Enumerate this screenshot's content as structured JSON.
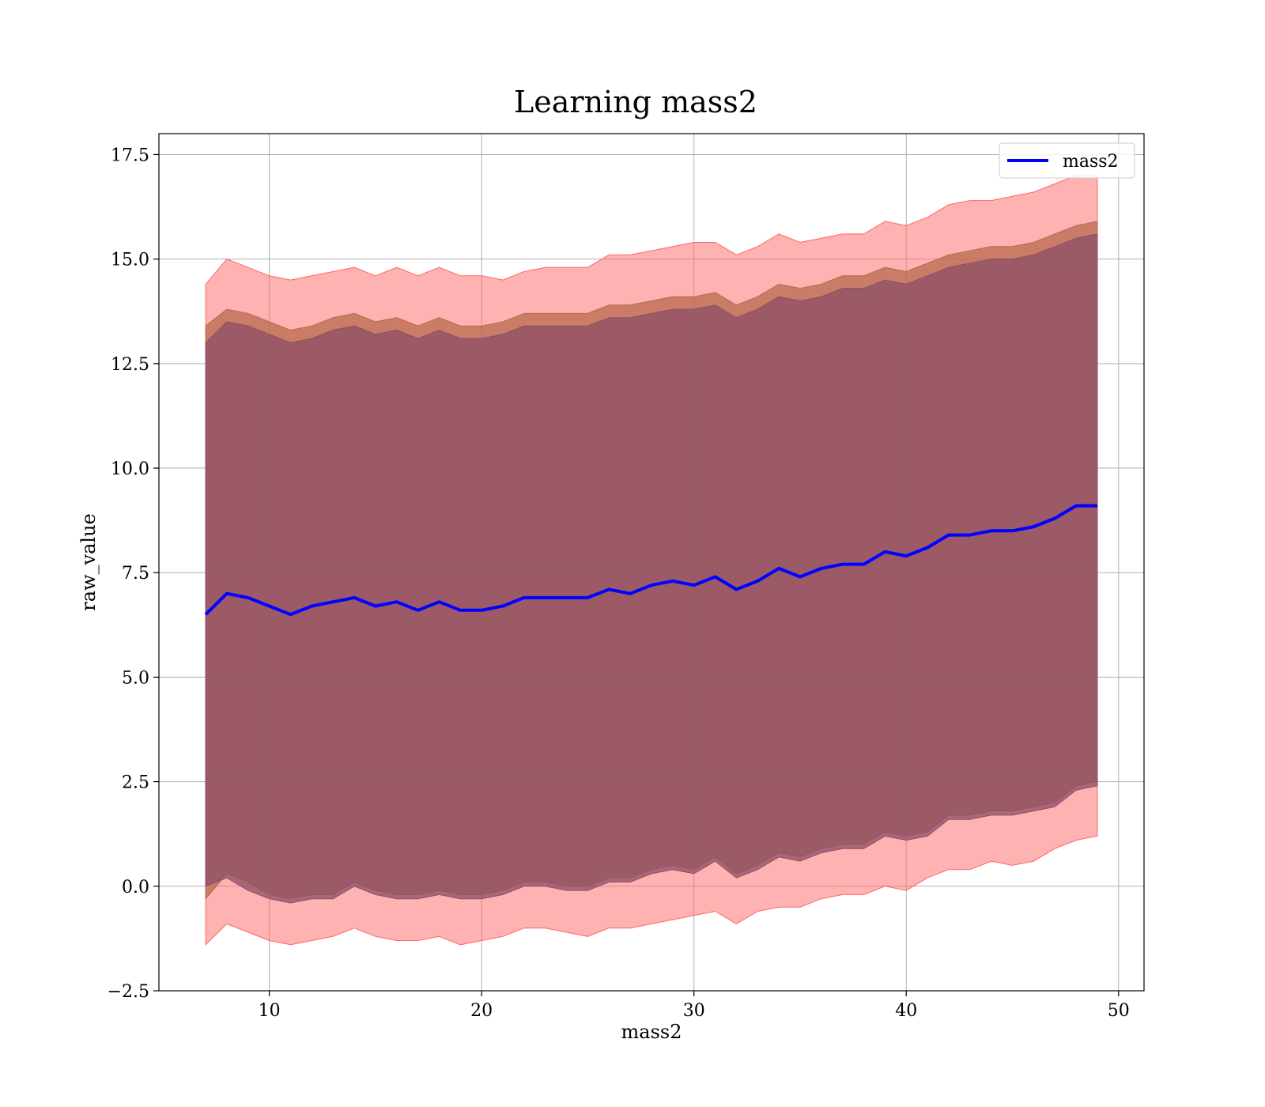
{
  "chart_data": {
    "type": "area",
    "title": "Learning mass2",
    "xlabel": "mass2",
    "ylabel": "raw_value",
    "xlim": [
      4.8,
      51.2
    ],
    "ylim": [
      -2.5,
      18.0
    ],
    "xticks": [
      10,
      20,
      30,
      40,
      50
    ],
    "xtick_labels": [
      "10",
      "20",
      "30",
      "40",
      "50"
    ],
    "yticks": [
      -2.5,
      0.0,
      2.5,
      5.0,
      7.5,
      10.0,
      12.5,
      15.0,
      17.5
    ],
    "ytick_labels": [
      "−2.5",
      "0.0",
      "2.5",
      "5.0",
      "7.5",
      "10.0",
      "12.5",
      "15.0",
      "17.5"
    ],
    "grid": true,
    "legend": {
      "position": "top-right",
      "entries": [
        "mass2"
      ]
    },
    "x": [
      7,
      8,
      9,
      10,
      11,
      12,
      13,
      14,
      15,
      16,
      17,
      18,
      19,
      20,
      21,
      22,
      23,
      24,
      25,
      26,
      27,
      28,
      29,
      30,
      31,
      32,
      33,
      34,
      35,
      36,
      37,
      38,
      39,
      40,
      41,
      42,
      43,
      44,
      45,
      46,
      47,
      48,
      49
    ],
    "series": [
      {
        "name": "mass2",
        "color": "#0000ff",
        "values": [
          6.5,
          7.0,
          6.9,
          6.7,
          6.5,
          6.7,
          6.8,
          6.9,
          6.7,
          6.8,
          6.6,
          6.8,
          6.6,
          6.6,
          6.7,
          6.9,
          6.9,
          6.9,
          6.9,
          7.1,
          7.0,
          7.2,
          7.3,
          7.2,
          7.4,
          7.1,
          7.3,
          7.6,
          7.4,
          7.6,
          7.7,
          7.7,
          8.0,
          7.9,
          8.1,
          8.4,
          8.4,
          8.5,
          8.5,
          8.6,
          8.8,
          9.1,
          9.1
        ]
      }
    ],
    "bands": [
      {
        "color": "#ff6666",
        "lower": [
          -1.4,
          -0.9,
          -1.1,
          -1.3,
          -1.4,
          -1.3,
          -1.2,
          -1.0,
          -1.2,
          -1.3,
          -1.3,
          -1.2,
          -1.4,
          -1.3,
          -1.2,
          -1.0,
          -1.0,
          -1.1,
          -1.2,
          -1.0,
          -1.0,
          -0.9,
          -0.8,
          -0.7,
          -0.6,
          -0.9,
          -0.6,
          -0.5,
          -0.5,
          -0.3,
          -0.2,
          -0.2,
          0.0,
          -0.1,
          0.2,
          0.4,
          0.4,
          0.6,
          0.5,
          0.6,
          0.9,
          1.1,
          1.2
        ],
        "upper": [
          14.4,
          15.0,
          14.8,
          14.6,
          14.5,
          14.6,
          14.7,
          14.8,
          14.6,
          14.8,
          14.6,
          14.8,
          14.6,
          14.6,
          14.5,
          14.7,
          14.8,
          14.8,
          14.8,
          15.1,
          15.1,
          15.2,
          15.3,
          15.4,
          15.4,
          15.1,
          15.3,
          15.6,
          15.4,
          15.5,
          15.6,
          15.6,
          15.9,
          15.8,
          16.0,
          16.3,
          16.4,
          16.4,
          16.5,
          16.6,
          16.8,
          17.0,
          17.0
        ]
      },
      {
        "color": "#b8694e",
        "lower": [
          -0.3,
          0.3,
          0.1,
          -0.2,
          -0.3,
          -0.2,
          -0.2,
          0.1,
          -0.1,
          -0.2,
          -0.2,
          -0.1,
          -0.2,
          -0.2,
          -0.1,
          0.1,
          0.1,
          0.0,
          0.0,
          0.2,
          0.2,
          0.4,
          0.5,
          0.4,
          0.7,
          0.3,
          0.5,
          0.8,
          0.7,
          0.9,
          1.0,
          1.0,
          1.3,
          1.2,
          1.3,
          1.7,
          1.7,
          1.8,
          1.8,
          1.9,
          2.0,
          2.4,
          2.5
        ],
        "upper": [
          13.4,
          13.8,
          13.7,
          13.5,
          13.3,
          13.4,
          13.6,
          13.7,
          13.5,
          13.6,
          13.4,
          13.6,
          13.4,
          13.4,
          13.5,
          13.7,
          13.7,
          13.7,
          13.7,
          13.9,
          13.9,
          14.0,
          14.1,
          14.1,
          14.2,
          13.9,
          14.1,
          14.4,
          14.3,
          14.4,
          14.6,
          14.6,
          14.8,
          14.7,
          14.9,
          15.1,
          15.2,
          15.3,
          15.3,
          15.4,
          15.6,
          15.8,
          15.9
        ]
      },
      {
        "color": "#8b4f66",
        "lower": [
          0.0,
          0.2,
          -0.1,
          -0.3,
          -0.4,
          -0.3,
          -0.3,
          0.0,
          -0.2,
          -0.3,
          -0.3,
          -0.2,
          -0.3,
          -0.3,
          -0.2,
          0.0,
          0.0,
          -0.1,
          -0.1,
          0.1,
          0.1,
          0.3,
          0.4,
          0.3,
          0.6,
          0.2,
          0.4,
          0.7,
          0.6,
          0.8,
          0.9,
          0.9,
          1.2,
          1.1,
          1.2,
          1.6,
          1.6,
          1.7,
          1.7,
          1.8,
          1.9,
          2.3,
          2.4
        ],
        "upper": [
          13.0,
          13.5,
          13.4,
          13.2,
          13.0,
          13.1,
          13.3,
          13.4,
          13.2,
          13.3,
          13.1,
          13.3,
          13.1,
          13.1,
          13.2,
          13.4,
          13.4,
          13.4,
          13.4,
          13.6,
          13.6,
          13.7,
          13.8,
          13.8,
          13.9,
          13.6,
          13.8,
          14.1,
          14.0,
          14.1,
          14.3,
          14.3,
          14.5,
          14.4,
          14.6,
          14.8,
          14.9,
          15.0,
          15.0,
          15.1,
          15.3,
          15.5,
          15.6
        ]
      }
    ]
  }
}
